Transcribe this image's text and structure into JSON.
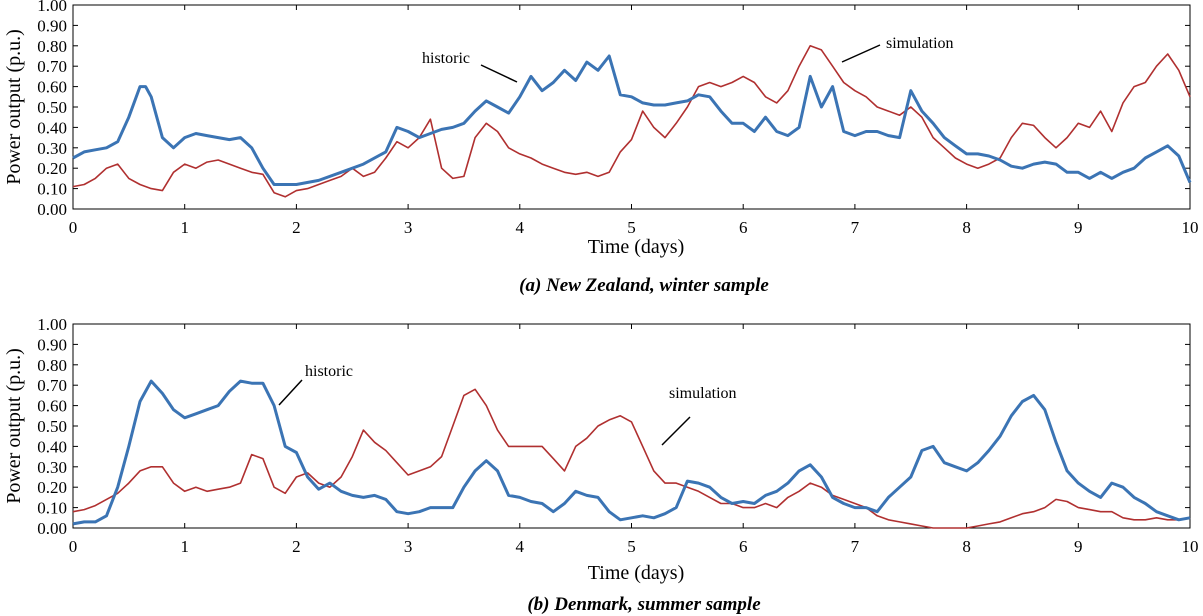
{
  "chart_data": [
    {
      "type": "line",
      "caption": "(a) New Zealand, winter sample",
      "xlabel": "Time (days)",
      "ylabel": "Power output (p.u.)",
      "xlim": [
        0,
        10
      ],
      "ylim": [
        0,
        1
      ],
      "xticks": [
        "0",
        "1",
        "2",
        "3",
        "4",
        "5",
        "6",
        "7",
        "8",
        "9",
        "10"
      ],
      "yticks": [
        "0.00",
        "0.10",
        "0.20",
        "0.30",
        "0.40",
        "0.50",
        "0.60",
        "0.70",
        "0.80",
        "0.90",
        "1.00"
      ],
      "grid": false,
      "annotations": [
        "historic",
        "simulation"
      ],
      "series": [
        {
          "name": "historic",
          "color": "#3b74b4",
          "x": [
            0,
            0.1,
            0.2,
            0.3,
            0.4,
            0.5,
            0.6,
            0.65,
            0.7,
            0.8,
            0.9,
            1.0,
            1.1,
            1.2,
            1.3,
            1.4,
            1.5,
            1.6,
            1.7,
            1.8,
            1.9,
            2.0,
            2.2,
            2.4,
            2.6,
            2.8,
            2.9,
            3.0,
            3.1,
            3.2,
            3.3,
            3.4,
            3.5,
            3.6,
            3.7,
            3.8,
            3.9,
            4.0,
            4.1,
            4.2,
            4.3,
            4.4,
            4.5,
            4.6,
            4.7,
            4.8,
            4.9,
            5.0,
            5.1,
            5.2,
            5.3,
            5.4,
            5.5,
            5.6,
            5.7,
            5.8,
            5.9,
            6.0,
            6.1,
            6.2,
            6.3,
            6.4,
            6.5,
            6.6,
            6.7,
            6.8,
            6.9,
            7.0,
            7.1,
            7.2,
            7.3,
            7.4,
            7.5,
            7.6,
            7.7,
            7.8,
            7.9,
            8.0,
            8.1,
            8.2,
            8.3,
            8.4,
            8.5,
            8.6,
            8.7,
            8.8,
            8.9,
            9.0,
            9.1,
            9.2,
            9.3,
            9.4,
            9.5,
            9.6,
            9.7,
            9.8,
            9.9,
            10.0
          ],
          "values": [
            0.25,
            0.28,
            0.29,
            0.3,
            0.33,
            0.45,
            0.6,
            0.6,
            0.55,
            0.35,
            0.3,
            0.35,
            0.37,
            0.36,
            0.35,
            0.34,
            0.35,
            0.3,
            0.2,
            0.12,
            0.12,
            0.12,
            0.14,
            0.18,
            0.22,
            0.28,
            0.4,
            0.38,
            0.35,
            0.37,
            0.39,
            0.4,
            0.42,
            0.48,
            0.53,
            0.5,
            0.47,
            0.55,
            0.65,
            0.58,
            0.62,
            0.68,
            0.63,
            0.72,
            0.68,
            0.75,
            0.56,
            0.55,
            0.52,
            0.51,
            0.51,
            0.52,
            0.53,
            0.56,
            0.55,
            0.48,
            0.42,
            0.42,
            0.38,
            0.45,
            0.38,
            0.36,
            0.4,
            0.65,
            0.5,
            0.6,
            0.38,
            0.36,
            0.38,
            0.38,
            0.36,
            0.35,
            0.58,
            0.48,
            0.42,
            0.35,
            0.31,
            0.27,
            0.27,
            0.26,
            0.24,
            0.21,
            0.2,
            0.22,
            0.23,
            0.22,
            0.18,
            0.18,
            0.15,
            0.18,
            0.15,
            0.18,
            0.2,
            0.25,
            0.28,
            0.31,
            0.26,
            0.13
          ]
        },
        {
          "name": "simulation",
          "color": "#b03030",
          "x": [
            0,
            0.1,
            0.2,
            0.3,
            0.4,
            0.5,
            0.6,
            0.7,
            0.8,
            0.9,
            1.0,
            1.1,
            1.2,
            1.3,
            1.4,
            1.5,
            1.6,
            1.7,
            1.8,
            1.9,
            2.0,
            2.1,
            2.2,
            2.3,
            2.4,
            2.5,
            2.6,
            2.7,
            2.8,
            2.9,
            3.0,
            3.1,
            3.2,
            3.3,
            3.4,
            3.5,
            3.6,
            3.7,
            3.8,
            3.9,
            4.0,
            4.1,
            4.2,
            4.3,
            4.4,
            4.5,
            4.6,
            4.7,
            4.8,
            4.9,
            5.0,
            5.1,
            5.2,
            5.3,
            5.4,
            5.5,
            5.6,
            5.7,
            5.8,
            5.9,
            6.0,
            6.1,
            6.2,
            6.3,
            6.4,
            6.5,
            6.6,
            6.7,
            6.8,
            6.9,
            7.0,
            7.1,
            7.2,
            7.3,
            7.4,
            7.5,
            7.6,
            7.7,
            7.8,
            7.9,
            8.0,
            8.1,
            8.2,
            8.3,
            8.4,
            8.5,
            8.6,
            8.7,
            8.8,
            8.9,
            9.0,
            9.1,
            9.2,
            9.3,
            9.4,
            9.5,
            9.6,
            9.7,
            9.8,
            9.9,
            10.0
          ],
          "values": [
            0.11,
            0.12,
            0.15,
            0.2,
            0.22,
            0.15,
            0.12,
            0.1,
            0.09,
            0.18,
            0.22,
            0.2,
            0.23,
            0.24,
            0.22,
            0.2,
            0.18,
            0.17,
            0.08,
            0.06,
            0.09,
            0.1,
            0.12,
            0.14,
            0.16,
            0.2,
            0.16,
            0.18,
            0.25,
            0.33,
            0.3,
            0.35,
            0.44,
            0.2,
            0.15,
            0.16,
            0.35,
            0.42,
            0.38,
            0.3,
            0.27,
            0.25,
            0.22,
            0.2,
            0.18,
            0.17,
            0.18,
            0.16,
            0.18,
            0.28,
            0.34,
            0.48,
            0.4,
            0.35,
            0.42,
            0.5,
            0.6,
            0.62,
            0.6,
            0.62,
            0.65,
            0.62,
            0.55,
            0.52,
            0.58,
            0.7,
            0.8,
            0.78,
            0.7,
            0.62,
            0.58,
            0.55,
            0.5,
            0.48,
            0.46,
            0.5,
            0.45,
            0.35,
            0.3,
            0.25,
            0.22,
            0.2,
            0.22,
            0.25,
            0.35,
            0.42,
            0.41,
            0.35,
            0.3,
            0.35,
            0.42,
            0.4,
            0.48,
            0.38,
            0.52,
            0.6,
            0.62,
            0.7,
            0.76,
            0.68,
            0.55
          ]
        }
      ]
    },
    {
      "type": "line",
      "caption": "(b) Denmark, summer sample",
      "xlabel": "Time (days)",
      "ylabel": "Power output (p.u.)",
      "xlim": [
        0,
        10
      ],
      "ylim": [
        0,
        1
      ],
      "xticks": [
        "0",
        "1",
        "2",
        "3",
        "4",
        "5",
        "6",
        "7",
        "8",
        "9",
        "10"
      ],
      "yticks": [
        "0.00",
        "0.10",
        "0.20",
        "0.30",
        "0.40",
        "0.50",
        "0.60",
        "0.70",
        "0.80",
        "0.90",
        "1.00"
      ],
      "grid": false,
      "annotations": [
        "historic",
        "simulation"
      ],
      "series": [
        {
          "name": "historic",
          "color": "#3b74b4",
          "x": [
            0,
            0.1,
            0.2,
            0.3,
            0.4,
            0.5,
            0.6,
            0.7,
            0.8,
            0.9,
            1.0,
            1.1,
            1.2,
            1.3,
            1.4,
            1.5,
            1.6,
            1.7,
            1.8,
            1.9,
            2.0,
            2.1,
            2.2,
            2.3,
            2.4,
            2.5,
            2.6,
            2.7,
            2.8,
            2.9,
            3.0,
            3.1,
            3.2,
            3.3,
            3.4,
            3.5,
            3.6,
            3.7,
            3.8,
            3.9,
            4.0,
            4.1,
            4.2,
            4.3,
            4.4,
            4.5,
            4.6,
            4.7,
            4.8,
            4.9,
            5.0,
            5.1,
            5.2,
            5.3,
            5.4,
            5.5,
            5.6,
            5.7,
            5.8,
            5.9,
            6.0,
            6.1,
            6.2,
            6.3,
            6.4,
            6.5,
            6.6,
            6.7,
            6.8,
            6.9,
            7.0,
            7.1,
            7.2,
            7.3,
            7.4,
            7.5,
            7.6,
            7.7,
            7.8,
            7.9,
            8.0,
            8.1,
            8.2,
            8.3,
            8.4,
            8.5,
            8.6,
            8.7,
            8.8,
            8.9,
            9.0,
            9.1,
            9.2,
            9.3,
            9.4,
            9.5,
            9.6,
            9.7,
            9.8,
            9.9,
            10.0
          ],
          "values": [
            0.02,
            0.03,
            0.03,
            0.06,
            0.2,
            0.4,
            0.62,
            0.72,
            0.66,
            0.58,
            0.54,
            0.56,
            0.58,
            0.6,
            0.67,
            0.72,
            0.71,
            0.71,
            0.6,
            0.4,
            0.37,
            0.25,
            0.19,
            0.22,
            0.18,
            0.16,
            0.15,
            0.16,
            0.14,
            0.08,
            0.07,
            0.08,
            0.1,
            0.1,
            0.1,
            0.2,
            0.28,
            0.33,
            0.28,
            0.16,
            0.15,
            0.13,
            0.12,
            0.08,
            0.12,
            0.18,
            0.16,
            0.15,
            0.08,
            0.04,
            0.05,
            0.06,
            0.05,
            0.07,
            0.1,
            0.23,
            0.22,
            0.2,
            0.15,
            0.12,
            0.13,
            0.12,
            0.16,
            0.18,
            0.22,
            0.28,
            0.31,
            0.25,
            0.15,
            0.12,
            0.1,
            0.1,
            0.08,
            0.15,
            0.2,
            0.25,
            0.38,
            0.4,
            0.32,
            0.3,
            0.28,
            0.32,
            0.38,
            0.45,
            0.55,
            0.62,
            0.65,
            0.58,
            0.42,
            0.28,
            0.22,
            0.18,
            0.15,
            0.22,
            0.2,
            0.15,
            0.12,
            0.08,
            0.06,
            0.04,
            0.05
          ]
        },
        {
          "name": "simulation",
          "color": "#b03030",
          "x": [
            0,
            0.1,
            0.2,
            0.3,
            0.4,
            0.5,
            0.6,
            0.7,
            0.8,
            0.9,
            1.0,
            1.1,
            1.2,
            1.3,
            1.4,
            1.5,
            1.6,
            1.7,
            1.8,
            1.9,
            2.0,
            2.1,
            2.2,
            2.3,
            2.4,
            2.5,
            2.6,
            2.7,
            2.8,
            2.9,
            3.0,
            3.1,
            3.2,
            3.3,
            3.4,
            3.5,
            3.6,
            3.7,
            3.8,
            3.9,
            4.0,
            4.1,
            4.2,
            4.3,
            4.4,
            4.5,
            4.6,
            4.7,
            4.8,
            4.9,
            5.0,
            5.1,
            5.2,
            5.3,
            5.4,
            5.5,
            5.6,
            5.7,
            5.8,
            5.9,
            6.0,
            6.1,
            6.2,
            6.3,
            6.4,
            6.5,
            6.6,
            6.7,
            6.8,
            6.9,
            7.0,
            7.1,
            7.2,
            7.3,
            7.4,
            7.5,
            7.6,
            7.7,
            7.8,
            7.9,
            8.0,
            8.1,
            8.2,
            8.3,
            8.4,
            8.5,
            8.6,
            8.7,
            8.8,
            8.9,
            9.0,
            9.1,
            9.2,
            9.3,
            9.4,
            9.5,
            9.6,
            9.7,
            9.8,
            9.9,
            10.0
          ],
          "values": [
            0.08,
            0.09,
            0.11,
            0.14,
            0.17,
            0.22,
            0.28,
            0.3,
            0.3,
            0.22,
            0.18,
            0.2,
            0.18,
            0.19,
            0.2,
            0.22,
            0.36,
            0.34,
            0.2,
            0.17,
            0.25,
            0.27,
            0.22,
            0.2,
            0.25,
            0.35,
            0.48,
            0.42,
            0.38,
            0.32,
            0.26,
            0.28,
            0.3,
            0.35,
            0.5,
            0.65,
            0.68,
            0.6,
            0.48,
            0.4,
            0.4,
            0.4,
            0.4,
            0.34,
            0.28,
            0.4,
            0.44,
            0.5,
            0.53,
            0.55,
            0.52,
            0.4,
            0.28,
            0.22,
            0.22,
            0.2,
            0.18,
            0.15,
            0.12,
            0.12,
            0.1,
            0.1,
            0.12,
            0.1,
            0.15,
            0.18,
            0.22,
            0.2,
            0.16,
            0.14,
            0.12,
            0.1,
            0.06,
            0.04,
            0.03,
            0.02,
            0.01,
            0.0,
            0.0,
            0.0,
            0.0,
            0.01,
            0.02,
            0.03,
            0.05,
            0.07,
            0.08,
            0.1,
            0.14,
            0.13,
            0.1,
            0.09,
            0.08,
            0.08,
            0.05,
            0.04,
            0.04,
            0.05,
            0.04,
            0.04,
            0.05
          ]
        }
      ]
    }
  ]
}
